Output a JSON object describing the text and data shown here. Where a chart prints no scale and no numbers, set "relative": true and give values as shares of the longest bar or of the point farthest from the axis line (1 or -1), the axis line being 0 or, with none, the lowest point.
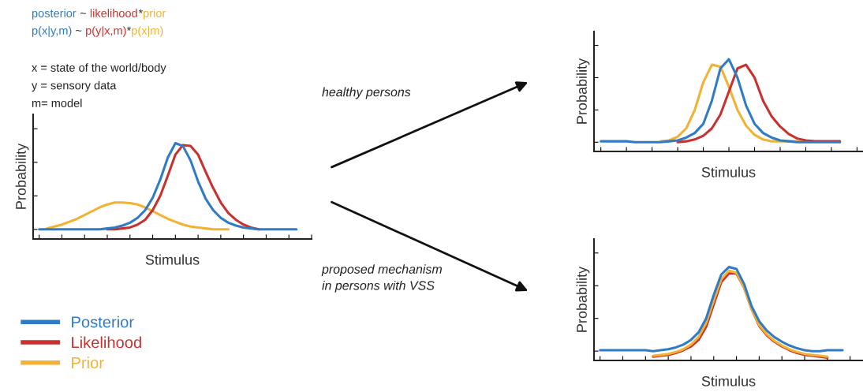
{
  "chart_data": [
    {
      "type": "line",
      "relative": true,
      "xlabel": "Stimulus",
      "ylabel": "Probability",
      "legend": "bottom",
      "tick_labels": false,
      "annotations": [
        "posterior",
        " ~ ",
        "likelihood",
        "*",
        "prior",
        "p(x|y,m)",
        " ~ ",
        "p(y|x,m)",
        "*",
        "p(x|m)",
        "x = state of the world/body",
        "y = sensory data",
        "m= model"
      ],
      "categories": [
        null,
        null,
        null,
        null,
        null,
        null,
        null,
        null,
        null,
        null,
        null,
        null,
        null,
        null,
        null,
        null,
        null,
        null,
        null,
        null,
        null,
        null,
        null,
        null,
        null,
        null,
        null,
        null,
        null,
        null,
        null,
        null,
        null,
        null,
        null
      ],
      "series": [
        {
          "name": "Posterior",
          "color": "#2f7bc4",
          "values": [
            0.1,
            0.1,
            0.1,
            0.1,
            0.1,
            0.1,
            0.1,
            0.1,
            0.1,
            0.11,
            0.12,
            0.14,
            0.17,
            0.22,
            0.3,
            0.43,
            0.62,
            0.85,
            1.0,
            0.97,
            0.82,
            0.6,
            0.42,
            0.3,
            0.22,
            0.17,
            0.14,
            0.12,
            0.11,
            0.1,
            0.1,
            0.1,
            0.1,
            0.1,
            0.1
          ]
        },
        {
          "name": "Likelihood",
          "color": "#c8312e",
          "values": [
            null,
            null,
            null,
            null,
            null,
            null,
            null,
            null,
            null,
            0.1,
            0.1,
            0.11,
            0.12,
            0.15,
            0.2,
            0.3,
            0.45,
            0.66,
            0.88,
            0.98,
            0.97,
            0.88,
            0.7,
            0.53,
            0.38,
            0.27,
            0.2,
            0.15,
            0.12,
            0.1,
            null,
            null,
            null,
            null,
            null
          ]
        },
        {
          "name": "Prior",
          "color": "#f2b233",
          "values": [
            null,
            0.11,
            0.13,
            0.15,
            0.18,
            0.21,
            0.25,
            0.29,
            0.33,
            0.36,
            0.38,
            0.38,
            0.375,
            0.36,
            0.33,
            0.29,
            0.25,
            0.21,
            0.18,
            0.15,
            0.13,
            0.12,
            0.11,
            0.1,
            0.1,
            0.1,
            null,
            null,
            null,
            null,
            null,
            null,
            null,
            null,
            null
          ]
        }
      ]
    },
    {
      "type": "line",
      "relative": true,
      "xlabel": "Stimulus",
      "ylabel": "Probability",
      "tick_labels": false,
      "annotations": [
        "healthy persons"
      ],
      "categories": [
        null,
        null,
        null,
        null,
        null,
        null,
        null,
        null,
        null,
        null,
        null,
        null,
        null,
        null,
        null,
        null,
        null,
        null,
        null,
        null,
        null,
        null,
        null,
        null,
        null,
        null,
        null,
        null,
        null
      ],
      "series": [
        {
          "color": "#2f7bc4",
          "values": [
            0.11,
            0.11,
            0.11,
            0.11,
            0.1,
            0.1,
            0.1,
            0.1,
            0.11,
            0.12,
            0.15,
            0.2,
            0.3,
            0.55,
            0.9,
            1.0,
            0.8,
            0.5,
            0.3,
            0.2,
            0.15,
            0.12,
            0.11,
            0.1,
            0.1,
            0.1,
            0.1,
            0.1,
            0.1
          ]
        },
        {
          "color": "#c8312e",
          "values": [
            null,
            null,
            null,
            null,
            null,
            null,
            null,
            null,
            null,
            0.1,
            0.11,
            0.13,
            0.17,
            0.25,
            0.4,
            0.65,
            0.9,
            0.94,
            0.8,
            0.55,
            0.38,
            0.27,
            0.19,
            0.14,
            0.12,
            0.11,
            0.11,
            0.11,
            0.11
          ]
        },
        {
          "color": "#f2b233",
          "values": [
            null,
            null,
            null,
            null,
            null,
            null,
            null,
            0.11,
            0.12,
            0.16,
            0.25,
            0.45,
            0.75,
            0.94,
            0.92,
            0.7,
            0.45,
            0.28,
            0.18,
            0.13,
            0.11,
            0.11,
            0.11,
            0.11,
            0.11,
            0.11,
            null,
            null,
            null
          ]
        }
      ]
    },
    {
      "type": "line",
      "relative": true,
      "xlabel": "Stimulus",
      "ylabel": "Probability",
      "tick_labels": false,
      "annotations": [
        "proposed mechanism\nin persons with VSS"
      ],
      "categories": [
        null,
        null,
        null,
        null,
        null,
        null,
        null,
        null,
        null,
        null,
        null,
        null,
        null,
        null,
        null,
        null,
        null,
        null,
        null,
        null,
        null,
        null,
        null,
        null,
        null,
        null,
        null,
        null,
        null,
        null,
        null,
        null,
        null
      ],
      "series": [
        {
          "color": "#2f7bc4",
          "values": [
            0.11,
            0.11,
            0.11,
            0.11,
            0.11,
            0.11,
            0.11,
            0.1,
            0.11,
            0.12,
            0.14,
            0.17,
            0.22,
            0.3,
            0.45,
            0.7,
            0.92,
            1.0,
            0.98,
            0.82,
            0.58,
            0.42,
            0.32,
            0.25,
            0.2,
            0.16,
            0.13,
            0.11,
            0.1,
            0.1,
            0.11,
            0.11,
            0.11
          ]
        },
        {
          "color": "#f2b233",
          "values": [
            null,
            null,
            null,
            null,
            null,
            null,
            null,
            0.05,
            0.06,
            0.07,
            0.09,
            0.12,
            0.17,
            0.25,
            0.4,
            0.64,
            0.87,
            0.96,
            0.94,
            0.78,
            0.55,
            0.38,
            0.28,
            0.21,
            0.16,
            0.12,
            0.09,
            0.07,
            0.06,
            0.05,
            0.04,
            null,
            null
          ]
        },
        {
          "color": "#c8312e",
          "values": [
            null,
            null,
            null,
            null,
            null,
            null,
            null,
            0.04,
            0.05,
            0.06,
            0.08,
            0.11,
            0.15,
            0.22,
            0.36,
            0.6,
            0.84,
            0.93,
            0.93,
            0.78,
            0.55,
            0.37,
            0.27,
            0.2,
            0.15,
            0.11,
            0.08,
            0.06,
            0.05,
            0.04,
            0.03,
            null,
            null
          ]
        }
      ]
    }
  ]
}
